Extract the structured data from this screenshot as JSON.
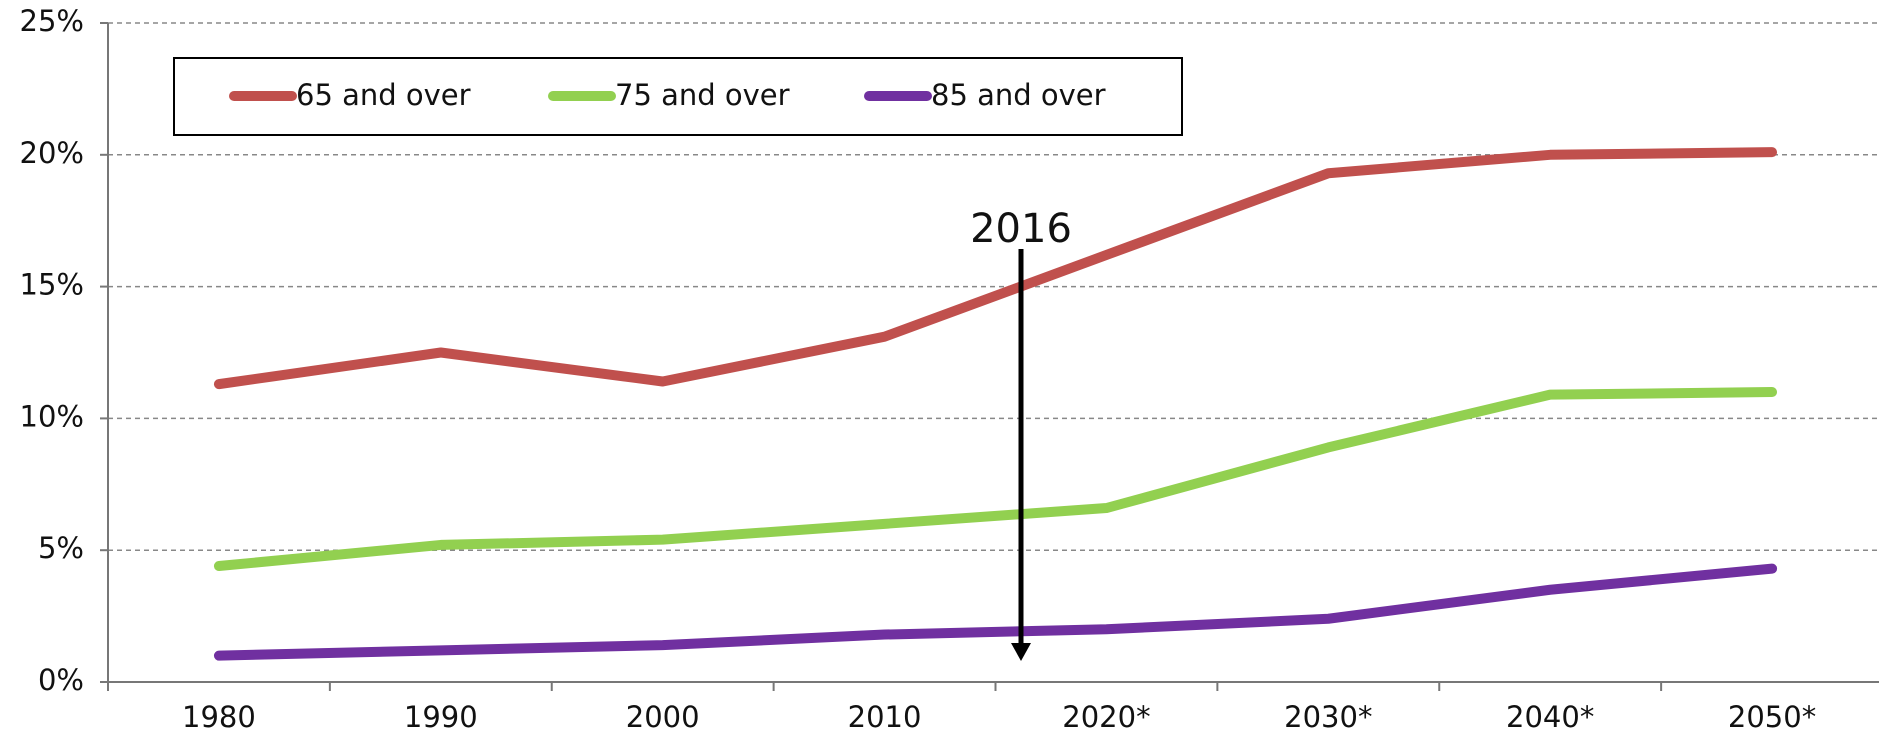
{
  "chart_data": {
    "type": "line",
    "annotation": "2016",
    "categories": [
      "1980",
      "1990",
      "2000",
      "2010",
      "2020*",
      "2030*",
      "2040*",
      "2050*"
    ],
    "series": [
      {
        "name": "65 and over",
        "color": "#c0504d",
        "values": [
          11.3,
          12.5,
          11.4,
          13.1,
          16.2,
          19.3,
          20.0,
          20.1
        ]
      },
      {
        "name": "75 and over",
        "color": "#92d050",
        "values": [
          4.4,
          5.2,
          5.4,
          6.0,
          6.6,
          8.9,
          10.9,
          11.0
        ]
      },
      {
        "name": "85 and over",
        "color": "#7030a0",
        "values": [
          1.0,
          1.2,
          1.4,
          1.8,
          2.0,
          2.4,
          3.5,
          4.3
        ]
      }
    ],
    "ylim": [
      0,
      25
    ],
    "yticks": [
      {
        "value": 0,
        "label": "0%"
      },
      {
        "value": 5,
        "label": "5%"
      },
      {
        "value": 10,
        "label": "10%"
      },
      {
        "value": 15,
        "label": "15%"
      },
      {
        "value": 20,
        "label": "20%"
      },
      {
        "value": 25,
        "label": "25%"
      }
    ],
    "grid": true
  }
}
